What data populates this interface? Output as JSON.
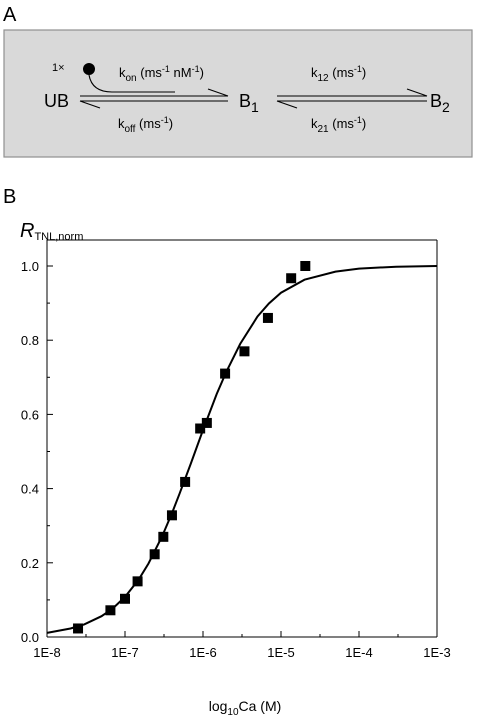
{
  "panels": {
    "a_label": "A",
    "b_label": "B"
  },
  "scheme": {
    "background": "#d9d9d9",
    "border": "#909090",
    "multiplier": "1×",
    "ub": "UB",
    "b1": "B",
    "b1_sub": "1",
    "b2": "B",
    "b2_sub": "2",
    "kon_main": "k",
    "kon_sub": "on",
    "kon_units_open": " (ms",
    "kon_units_exp1": "-1",
    "kon_units_mid": " nM",
    "kon_units_exp2": "-1",
    "kon_units_close": ")",
    "koff_main": "k",
    "koff_sub": "off",
    "koff_units_open": " (ms",
    "koff_units_exp": "-1",
    "koff_units_close": ")",
    "k12_main": "k",
    "k12_sub": "12",
    "k12_units_open": " (ms",
    "k12_units_exp": "-1",
    "k12_units_close": ")",
    "k21_main": "k",
    "k21_sub": "21",
    "k21_units_open": " (ms",
    "k21_units_exp": "-1",
    "k21_units_close": ")"
  },
  "chart_data": {
    "type": "scatter",
    "ylabel_main": "R",
    "ylabel_sub": "TNL,norm",
    "xlabel_pre": "log",
    "xlabel_sub": "10",
    "xlabel_post": "Ca (M)",
    "x_scale": "log",
    "xlim": [
      1e-08,
      0.001
    ],
    "ylim": [
      0.0,
      1.05
    ],
    "x_ticks": [
      1e-08,
      1e-07,
      1e-06,
      1e-05,
      0.0001,
      0.001
    ],
    "x_tick_labels": [
      "1E-8",
      "1E-7",
      "1E-6",
      "1E-5",
      "1E-4",
      "1E-3"
    ],
    "y_ticks": [
      0.0,
      0.2,
      0.4,
      0.6,
      0.8,
      1.0
    ],
    "y_tick_labels": [
      "0.0",
      "0.2",
      "0.4",
      "0.6",
      "0.8",
      "1.0"
    ],
    "grid": false,
    "series": [
      {
        "kind": "markers",
        "marker": "square",
        "x": [
          2.5e-08,
          6.5e-08,
          1e-07,
          1.45e-07,
          2.4e-07,
          3.1e-07,
          4e-07,
          5.9e-07,
          9.2e-07,
          1.12e-06,
          1.92e-06,
          3.4e-06,
          6.8e-06,
          1.35e-05,
          2.05e-05
        ],
        "y": [
          0.023,
          0.072,
          0.103,
          0.15,
          0.223,
          0.27,
          0.328,
          0.418,
          0.562,
          0.577,
          0.71,
          0.77,
          0.86,
          0.967,
          1.0
        ]
      },
      {
        "kind": "line",
        "x": [
          1e-08,
          2e-08,
          3e-08,
          5e-08,
          7e-08,
          1e-07,
          1.5e-07,
          2e-07,
          3e-07,
          4e-07,
          5e-07,
          7e-07,
          1e-06,
          1.5e-06,
          2e-06,
          3e-06,
          5e-06,
          7e-06,
          1e-05,
          2e-05,
          5e-05,
          0.0001,
          0.0003,
          0.001
        ],
        "y": [
          0.011,
          0.023,
          0.034,
          0.056,
          0.077,
          0.108,
          0.155,
          0.198,
          0.272,
          0.334,
          0.386,
          0.468,
          0.558,
          0.655,
          0.716,
          0.79,
          0.864,
          0.899,
          0.928,
          0.963,
          0.985,
          0.993,
          0.998,
          1.0
        ]
      }
    ]
  }
}
